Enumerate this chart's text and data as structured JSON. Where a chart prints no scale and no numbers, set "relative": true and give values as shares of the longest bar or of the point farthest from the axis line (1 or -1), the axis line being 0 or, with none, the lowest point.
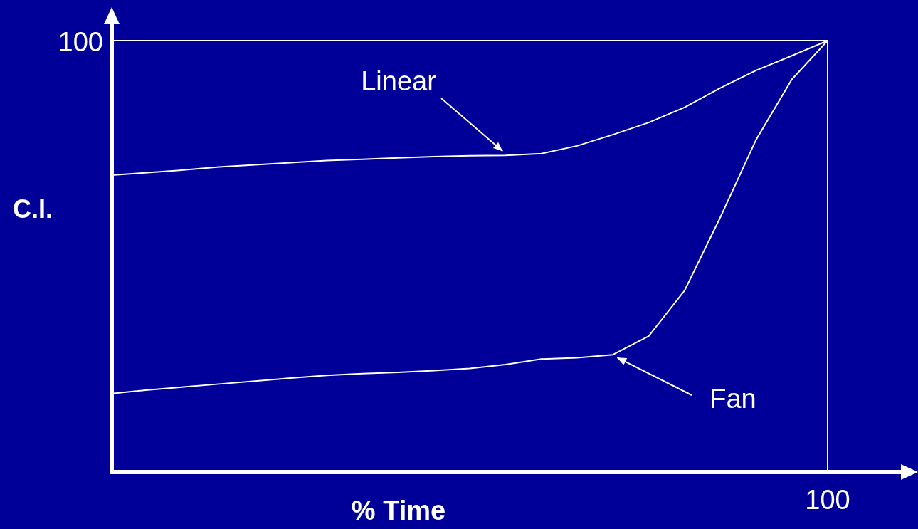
{
  "chart_data": {
    "type": "line",
    "relative": true,
    "xlabel": "% Time",
    "ylabel": "C.I.",
    "legend": false,
    "marker": "none",
    "line_style": "solid",
    "annotations": [
      "100",
      "100"
    ],
    "categories": [
      null,
      null,
      null,
      null,
      null,
      null,
      null,
      null,
      null,
      null,
      null,
      null,
      null,
      null,
      null,
      null,
      null,
      null,
      null,
      null,
      null
    ],
    "series": [
      {
        "name": "Linear",
        "color": "#ffffff",
        "values": [
          0.688,
          0.694,
          0.7,
          0.707,
          0.712,
          0.717,
          0.722,
          0.725,
          0.728,
          0.731,
          0.733,
          0.734,
          0.738,
          0.756,
          0.782,
          0.81,
          0.845,
          0.89,
          0.931,
          0.965,
          1
        ]
      },
      {
        "name": "Fan",
        "color": "#ffffff",
        "values": [
          0.182,
          0.19,
          0.197,
          0.204,
          0.211,
          0.218,
          0.224,
          0.228,
          0.231,
          0.235,
          0.24,
          0.249,
          0.262,
          0.265,
          0.272,
          0.315,
          0.42,
          0.59,
          0.77,
          0.91,
          1
        ]
      }
    ]
  }
}
